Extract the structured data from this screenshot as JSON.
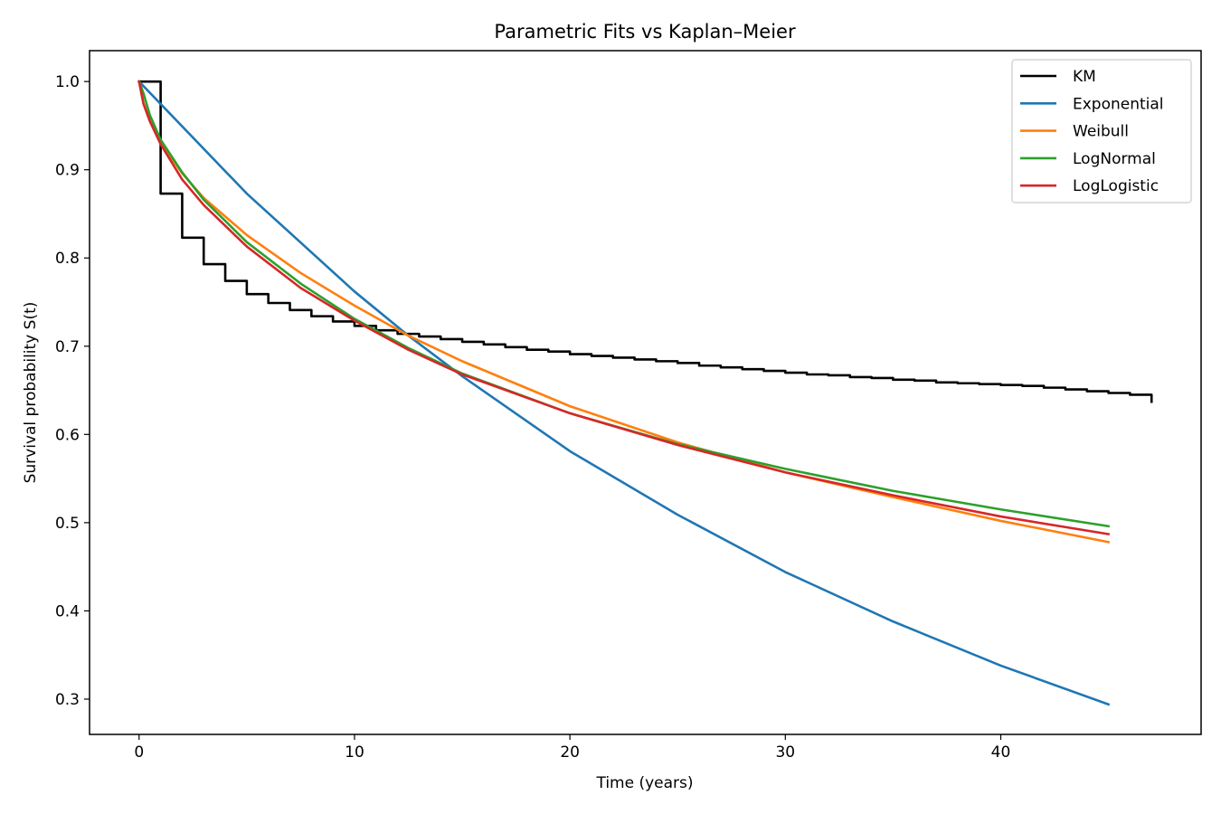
{
  "chart_data": {
    "type": "line",
    "title": "Parametric Fits vs Kaplan–Meier",
    "xlabel": "Time (years)",
    "ylabel": "Survival probability S(t)",
    "xlim": [
      -2.3,
      49.3
    ],
    "ylim": [
      0.26,
      1.035
    ],
    "xticks": [
      0,
      10,
      20,
      30,
      40
    ],
    "yticks": [
      0.3,
      0.4,
      0.5,
      0.6,
      0.7,
      0.8,
      0.9,
      1.0
    ],
    "xtick_labels": [
      "0",
      "10",
      "20",
      "30",
      "40"
    ],
    "ytick_labels": [
      "0.3",
      "0.4",
      "0.5",
      "0.6",
      "0.7",
      "0.8",
      "0.9",
      "1.0"
    ],
    "grid": false,
    "legend": "top-right",
    "series": [
      {
        "name": "KM",
        "color": "#000000",
        "step": true,
        "x": [
          0,
          1,
          2,
          3,
          4,
          5,
          6,
          7,
          8,
          9,
          10,
          11,
          12,
          13,
          14,
          15,
          16,
          17,
          18,
          19,
          20,
          21,
          22,
          23,
          24,
          25,
          26,
          27,
          28,
          29,
          30,
          31,
          32,
          33,
          34,
          35,
          36,
          37,
          38,
          39,
          40,
          41,
          42,
          43,
          44,
          45,
          46,
          47
        ],
        "y": [
          1.0,
          0.873,
          0.823,
          0.793,
          0.774,
          0.759,
          0.749,
          0.741,
          0.734,
          0.728,
          0.723,
          0.718,
          0.714,
          0.711,
          0.708,
          0.705,
          0.702,
          0.699,
          0.696,
          0.694,
          0.691,
          0.689,
          0.687,
          0.685,
          0.683,
          0.681,
          0.678,
          0.676,
          0.674,
          0.672,
          0.67,
          0.668,
          0.667,
          0.665,
          0.664,
          0.662,
          0.661,
          0.659,
          0.658,
          0.657,
          0.656,
          0.655,
          0.653,
          0.651,
          0.649,
          0.647,
          0.645,
          0.637
        ]
      },
      {
        "name": "Exponential",
        "color": "#1f77b4",
        "x": [
          0,
          5,
          10,
          12.5,
          15,
          20,
          25,
          30,
          35,
          40,
          45
        ],
        "y": [
          1.0,
          0.873,
          0.762,
          0.712,
          0.666,
          0.581,
          0.509,
          0.444,
          0.388,
          0.338,
          0.294
        ]
      },
      {
        "name": "Weibull",
        "color": "#ff7f0e",
        "x": [
          0,
          0.2,
          0.5,
          1,
          2,
          3,
          5,
          7.5,
          10,
          12.5,
          15,
          20,
          25,
          30,
          35,
          40,
          45
        ],
        "y": [
          1.0,
          0.976,
          0.955,
          0.931,
          0.896,
          0.868,
          0.826,
          0.783,
          0.746,
          0.712,
          0.683,
          0.632,
          0.591,
          0.557,
          0.529,
          0.502,
          0.478
        ]
      },
      {
        "name": "LogNormal",
        "color": "#2ca02c",
        "x": [
          0,
          0.2,
          0.5,
          1,
          2,
          3,
          5,
          7.5,
          10,
          12.5,
          15,
          20,
          25,
          30,
          35,
          40,
          45
        ],
        "y": [
          1.0,
          0.987,
          0.962,
          0.934,
          0.897,
          0.866,
          0.818,
          0.771,
          0.731,
          0.698,
          0.669,
          0.624,
          0.589,
          0.561,
          0.536,
          0.515,
          0.496
        ]
      },
      {
        "name": "LogLogistic",
        "color": "#d62728",
        "x": [
          0,
          0.2,
          0.5,
          1,
          2,
          3,
          5,
          7.5,
          10,
          12.5,
          15,
          20,
          25,
          30,
          35,
          40,
          45
        ],
        "y": [
          1.0,
          0.975,
          0.955,
          0.929,
          0.889,
          0.86,
          0.813,
          0.766,
          0.729,
          0.696,
          0.668,
          0.624,
          0.588,
          0.557,
          0.531,
          0.507,
          0.487
        ]
      }
    ]
  }
}
